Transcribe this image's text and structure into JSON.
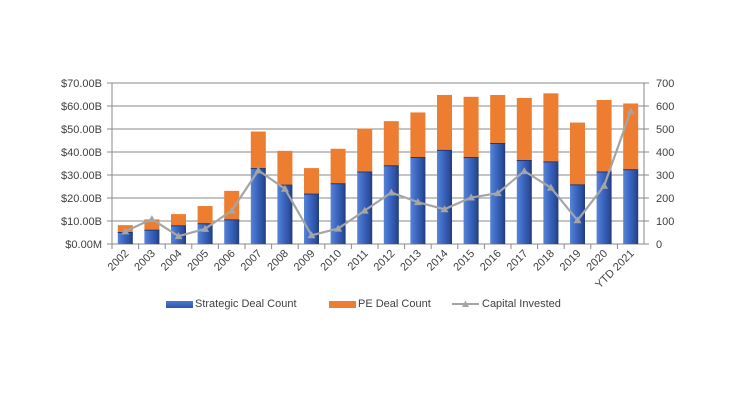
{
  "colors": {
    "strategic": "#3a64bf",
    "strategic_dark": "#1f3a7a",
    "strategic_light": "#5584d8",
    "pe": "#ed7d31",
    "line": "#a5a5a5",
    "grid": "#898989",
    "axis": "#898989",
    "text": "#404040"
  },
  "chart_data": {
    "type": "bar",
    "stacked": true,
    "title": "",
    "xlabel": "",
    "ylabel": "",
    "categories": [
      "2002",
      "2003",
      "2004",
      "2005",
      "2006",
      "2007",
      "2008",
      "2009",
      "2010",
      "2011",
      "2012",
      "2013",
      "2014",
      "2015",
      "2016",
      "2017",
      "2018",
      "2019",
      "2020",
      "YTD 2021"
    ],
    "series": [
      {
        "name": "Strategic Deal Count",
        "type": "bar",
        "axis": "right",
        "values": [
          50,
          60,
          79,
          88,
          105,
          328,
          256,
          217,
          262,
          313,
          340,
          376,
          407,
          376,
          437,
          363,
          357,
          257,
          313,
          323
        ]
      },
      {
        "name": "PE Deal Count",
        "type": "bar",
        "axis": "right",
        "values": [
          32,
          47,
          51,
          77,
          126,
          161,
          149,
          113,
          152,
          189,
          194,
          196,
          241,
          264,
          211,
          272,
          298,
          271,
          313,
          288
        ]
      },
      {
        "name": "Capital Invested",
        "type": "line",
        "axis": "left",
        "marker": "triangle",
        "values": [
          5.5,
          10.8,
          3.4,
          6.6,
          14.5,
          32.0,
          24.0,
          3.8,
          6.7,
          14.5,
          22.4,
          18.2,
          15.1,
          20.2,
          22.1,
          31.7,
          24.5,
          10.3,
          25.3,
          57.7
        ]
      }
    ],
    "left_axis": {
      "ylim": [
        0,
        70
      ],
      "unit": "$B",
      "tick_labels": [
        "$0.00M",
        "$10.00B",
        "$20.00B",
        "$30.00B",
        "$40.00B",
        "$50.00B",
        "$60.00B",
        "$70.00B"
      ]
    },
    "right_axis": {
      "ylim": [
        0,
        700
      ],
      "tick_labels": [
        "0",
        "100",
        "200",
        "300",
        "400",
        "500",
        "600",
        "700"
      ]
    },
    "grid": true,
    "legend_position": "bottom",
    "legend": [
      "Strategic Deal Count",
      "PE Deal Count",
      "Capital Invested"
    ]
  }
}
